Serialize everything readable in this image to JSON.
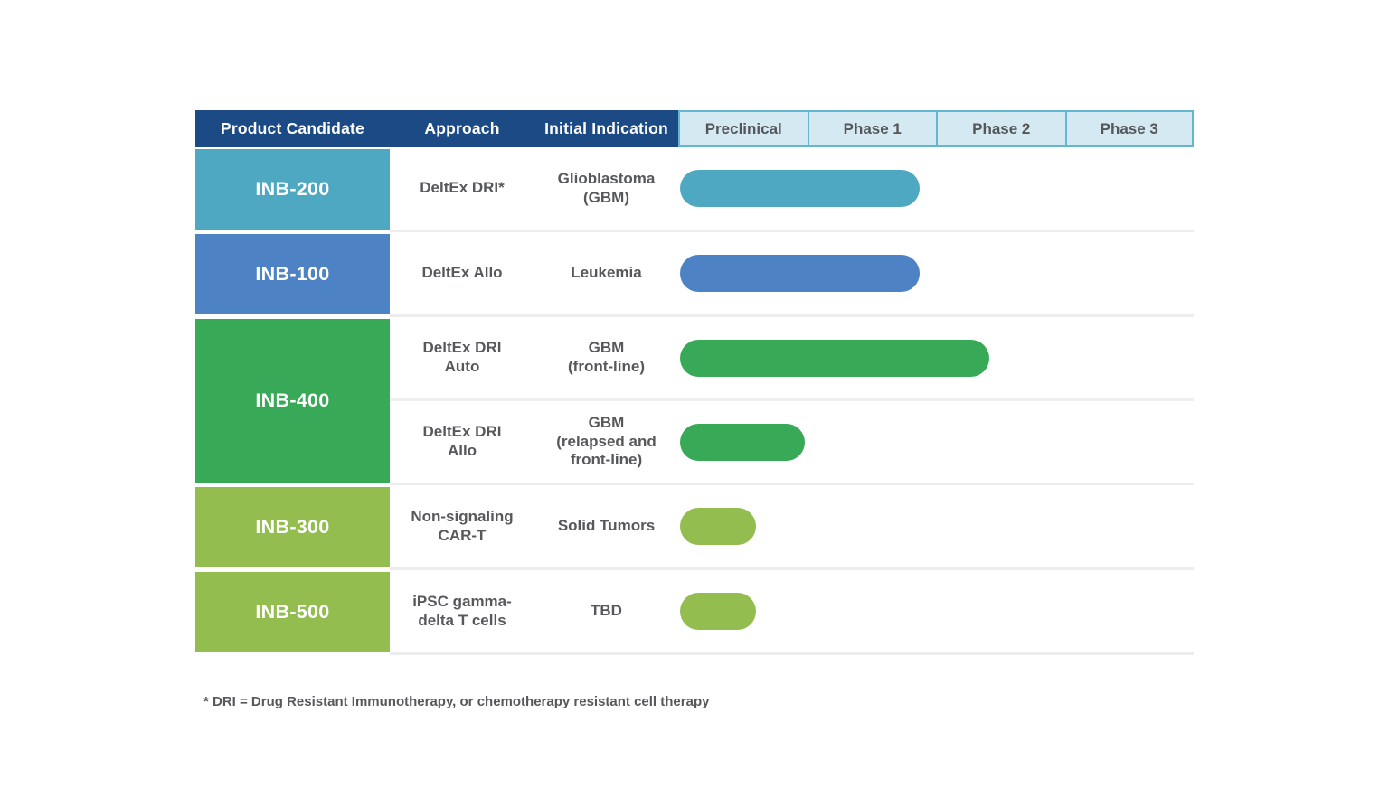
{
  "header": {
    "info_columns": [
      {
        "label": "Product Candidate"
      },
      {
        "label": "Approach"
      },
      {
        "label": "Initial Indication"
      }
    ],
    "phase_columns": [
      {
        "label": "Preclinical"
      },
      {
        "label": "Phase 1"
      },
      {
        "label": "Phase 2"
      },
      {
        "label": "Phase 3"
      }
    ]
  },
  "rows": [
    {
      "candidate": "INB-200",
      "color": "#4FA8C2",
      "entries": [
        {
          "approach": "DeltEx DRI*",
          "indication": "Glioblastoma\n(GBM)",
          "phase_extent": 1.86
        }
      ]
    },
    {
      "candidate": "INB-100",
      "color": "#4D82C4",
      "entries": [
        {
          "approach": "DeltEx Allo",
          "indication": "Leukemia",
          "phase_extent": 1.86
        }
      ]
    },
    {
      "candidate": "INB-400",
      "color": "#38A956",
      "entries": [
        {
          "approach": "DeltEx DRI\nAuto",
          "indication": "GBM\n(front-line)",
          "phase_extent": 2.4
        },
        {
          "approach": "DeltEx DRI\nAllo",
          "indication": "GBM\n(relapsed and\nfront-line)",
          "phase_extent": 0.97
        }
      ]
    },
    {
      "candidate": "INB-300",
      "color": "#93BD4F",
      "entries": [
        {
          "approach": "Non-signaling\nCAR-T",
          "indication": "Solid Tumors",
          "phase_extent": 0.59
        }
      ]
    },
    {
      "candidate": "INB-500",
      "color": "#93BD4F",
      "entries": [
        {
          "approach": "iPSC gamma-\ndelta T cells",
          "indication": "TBD",
          "phase_extent": 0.59
        }
      ]
    }
  ],
  "footnote": "* DRI = Drug Resistant Immunotherapy, or chemotherapy resistant cell therapy",
  "colors": {
    "header_bg": "#1C4A85",
    "phase_header_bg": "#D4E9F2",
    "phase_header_border": "#63B7CE",
    "body_text": "#57585B",
    "divider": "#ECECEC"
  },
  "chart_data": {
    "type": "bar",
    "orientation": "horizontal",
    "title": "",
    "xlabel": "",
    "ylabel": "",
    "x_ticks": [
      "Preclinical",
      "Phase 1",
      "Phase 2",
      "Phase 3"
    ],
    "xlim": [
      0,
      4
    ],
    "units": "development phases reached (1 = end of Preclinical, 2 = end of Phase 1, etc.)",
    "grid": false,
    "legend": false,
    "categories": [
      "INB-200 | DeltEx DRI* | Glioblastoma (GBM)",
      "INB-100 | DeltEx Allo | Leukemia",
      "INB-400 | DeltEx DRI Auto | GBM (front-line)",
      "INB-400 | DeltEx DRI Allo | GBM (relapsed and front-line)",
      "INB-300 | Non-signaling CAR-T | Solid Tumors",
      "INB-500 | iPSC gamma-delta T cells | TBD"
    ],
    "values": [
      1.86,
      1.86,
      2.4,
      0.97,
      0.59,
      0.59
    ],
    "bar_colors": [
      "#4FA8C2",
      "#4D82C4",
      "#38A956",
      "#38A956",
      "#93BD4F",
      "#93BD4F"
    ]
  }
}
